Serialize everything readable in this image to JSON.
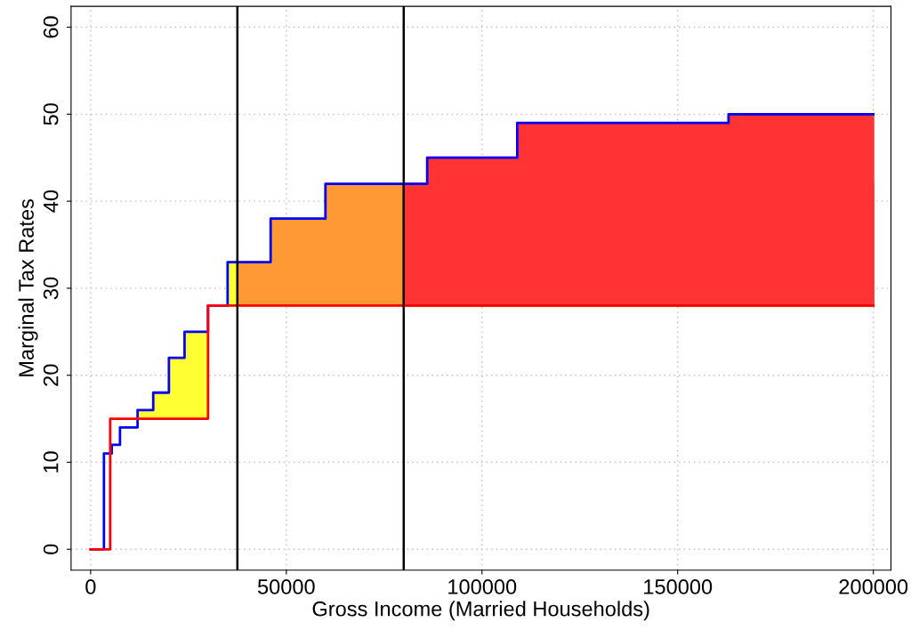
{
  "chart_data": {
    "type": "step",
    "xlabel": "Gross Income (Married Households)",
    "ylabel": "Marginal Tax Rates",
    "xlim": [
      -5000,
      204500
    ],
    "ylim": [
      -2.4,
      62.4
    ],
    "xticks": [
      0,
      50000,
      100000,
      150000,
      200000
    ],
    "yticks": [
      0,
      10,
      20,
      30,
      40,
      50,
      60
    ],
    "grid": true,
    "series": [
      {
        "type": "area",
        "color": "#ffff33",
        "x": [
          12000,
          16000,
          20000,
          24000,
          30000
        ],
        "values": [
          16,
          18,
          22,
          25,
          25
        ]
      },
      {
        "type": "area",
        "color": "#ffff33",
        "x": [
          35000,
          37500
        ],
        "values": [
          33,
          33
        ]
      },
      {
        "type": "area",
        "color": "#ff9933",
        "x": [
          37500,
          46000,
          60000,
          80000
        ],
        "values": [
          33,
          38,
          42,
          42
        ]
      },
      {
        "type": "area",
        "color": "#ff3333",
        "x": [
          80000,
          200000
        ],
        "values": [
          42,
          42
        ]
      },
      {
        "type": "area",
        "color": "#ff3333",
        "x": [
          80000,
          86000,
          109000,
          163000,
          200000
        ],
        "values": [
          42,
          45,
          49,
          50,
          50
        ]
      },
      {
        "color": "#0000ff",
        "x": [
          0,
          3400,
          5400,
          7500,
          12000,
          16000,
          20000,
          24000,
          30000,
          35000,
          46000,
          60000,
          86000,
          109000,
          163000,
          200000
        ],
        "values": [
          0,
          11,
          12,
          14,
          16,
          18,
          22,
          25,
          28,
          33,
          38,
          42,
          45,
          49,
          50,
          50
        ]
      },
      {
        "color": "#ff0000",
        "x": [
          0,
          5000,
          30000,
          200000
        ],
        "values": [
          0,
          15,
          28,
          28
        ]
      }
    ],
    "ref_lines": [
      {
        "axis": "x",
        "value": 37500,
        "color": "#000000"
      },
      {
        "axis": "x",
        "value": 80000,
        "color": "#000000"
      }
    ]
  }
}
